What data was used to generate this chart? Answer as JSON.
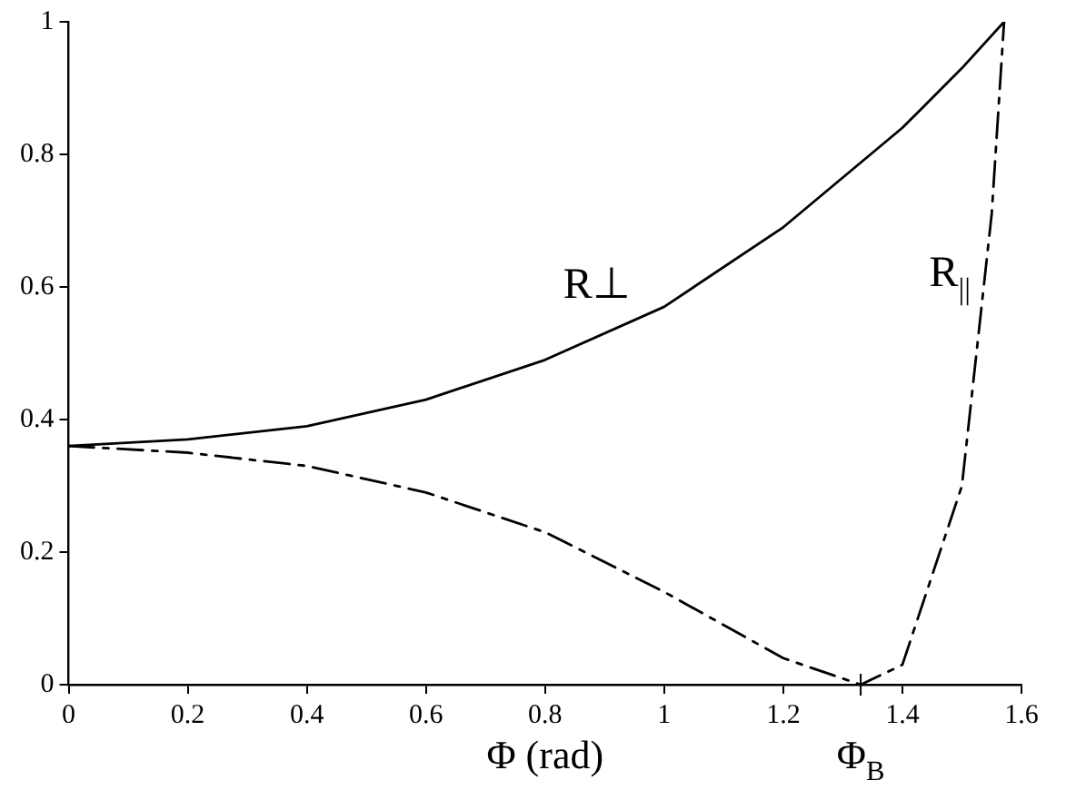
{
  "chart_data": {
    "type": "line",
    "xlabel": "Φ (rad)",
    "xlim": [
      0,
      1.6
    ],
    "xticks": [
      0,
      0.2,
      0.4,
      0.6,
      0.8,
      1,
      1.2,
      1.4,
      1.6
    ],
    "ylim": [
      0,
      1
    ],
    "yticks": [
      0,
      0.2,
      0.4,
      0.6,
      0.8,
      1
    ],
    "grid": false,
    "legend": false,
    "marker": "none",
    "series": [
      {
        "name": "R⊥",
        "color": "#000000",
        "line_style": "solid",
        "x": [
          0,
          0.2,
          0.4,
          0.6,
          0.8,
          1,
          1.2,
          1.4,
          1.5,
          1.5708
        ],
        "values": [
          0.36,
          0.37,
          0.39,
          0.43,
          0.49,
          0.57,
          0.69,
          0.84,
          0.93,
          1
        ]
      },
      {
        "name": "R$_{||}$",
        "color": "#000000",
        "line_style": "dashed",
        "x": [
          0,
          0.2,
          0.4,
          0.6,
          0.8,
          1,
          1.2,
          1.33,
          1.4,
          1.5,
          1.55,
          1.5708
        ],
        "values": [
          0.36,
          0.35,
          0.33,
          0.29,
          0.23,
          0.14,
          0.04,
          0,
          0.03,
          0.3,
          0.71,
          1
        ]
      }
    ],
    "annotations": [
      {
        "text": "Φ$_{B}$",
        "x": 1.33,
        "y": 0
      }
    ]
  }
}
